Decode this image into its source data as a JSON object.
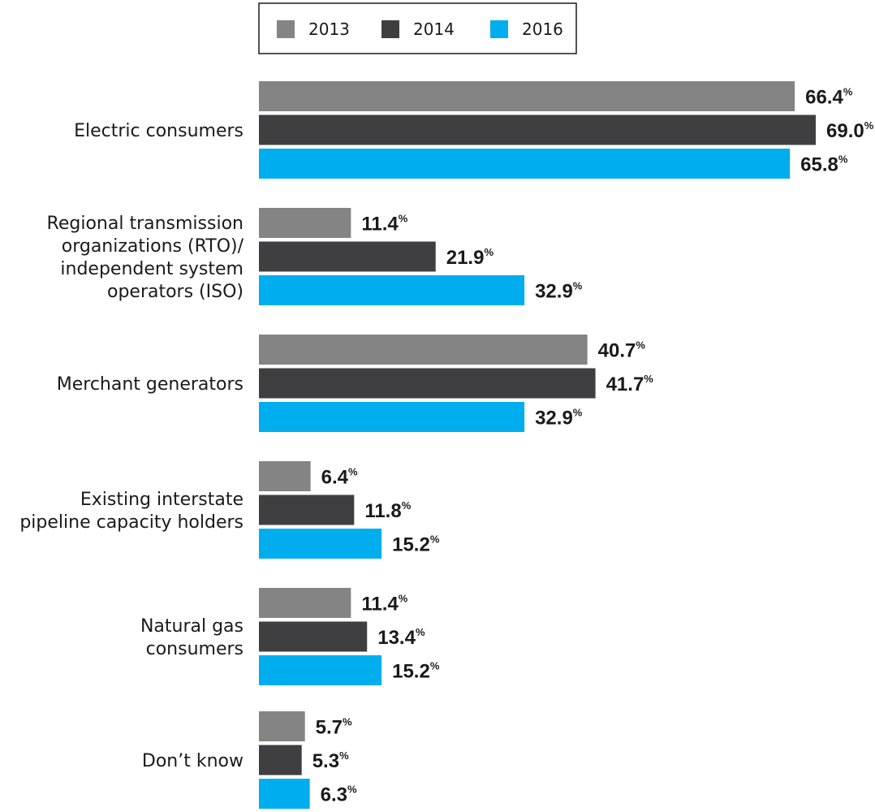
{
  "chart_data": {
    "type": "bar",
    "orientation": "horizontal",
    "title": "",
    "xlabel": "",
    "ylabel": "",
    "xlim": [
      0,
      70
    ],
    "grid": false,
    "legend_position": "top",
    "value_suffix": "%",
    "categories": [
      [
        "Electric consumers"
      ],
      [
        "Regional transmission",
        "organizations (RTO)/",
        "independent system",
        "operators (ISO)"
      ],
      [
        "Merchant generators"
      ],
      [
        "Existing interstate",
        "pipeline capacity holders"
      ],
      [
        "Natural gas",
        "consumers"
      ],
      [
        "Don’t know"
      ]
    ],
    "series": [
      {
        "name": "2013",
        "color": "#848484",
        "values": [
          66.4,
          11.4,
          40.7,
          6.4,
          11.4,
          5.7
        ]
      },
      {
        "name": "2014",
        "color": "#3f3f42",
        "values": [
          69.0,
          21.9,
          41.7,
          11.8,
          13.4,
          5.3
        ]
      },
      {
        "name": "2016",
        "color": "#00aeef",
        "values": [
          65.8,
          32.9,
          32.9,
          15.2,
          15.2,
          6.3
        ]
      }
    ]
  }
}
